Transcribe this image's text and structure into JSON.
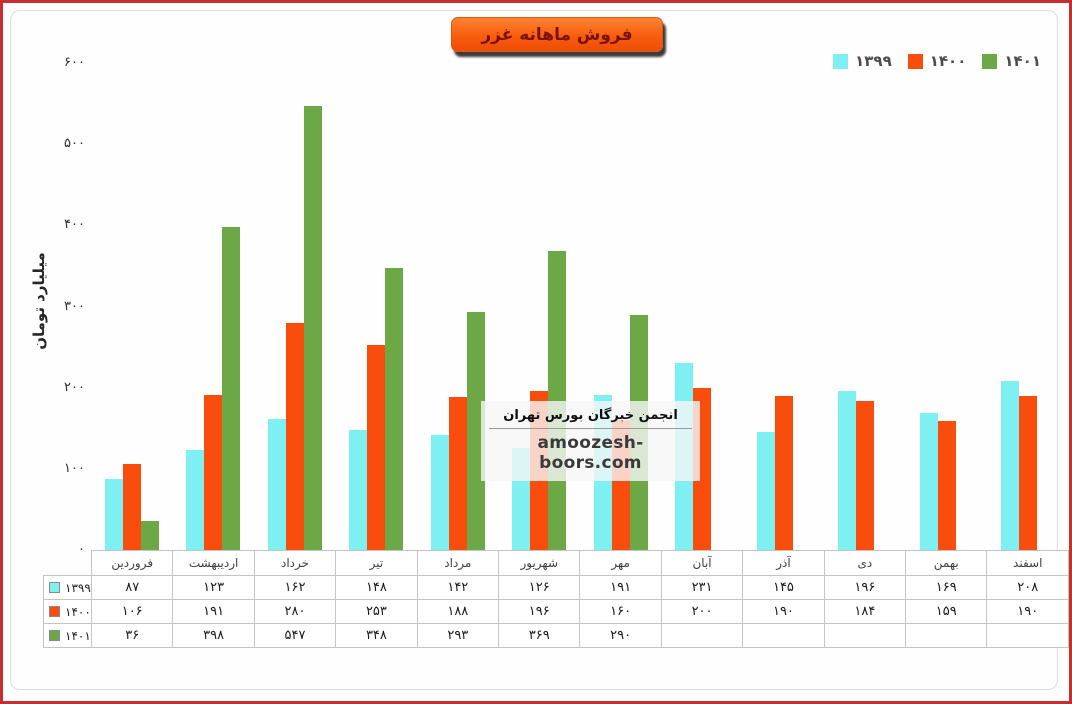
{
  "colors": {
    "frame_border": "#c62f2f",
    "badge_bg": "#f85d0f",
    "badge_text": "#7a1205",
    "series_1399": "#7ef0f1",
    "series_1400": "#f84d0c",
    "series_1401": "#6ca845"
  },
  "watermark": {
    "line1": "انجمن خبرگان بورس تهران",
    "line2": "amoozesh-boors.com"
  },
  "chart_data": {
    "type": "bar",
    "title": "فروش ماهانه غزر",
    "xlabel": "",
    "ylabel": "میلیارد تومان",
    "ylim": [
      0,
      600
    ],
    "yticks": [
      0,
      100,
      200,
      300,
      400,
      500,
      600
    ],
    "grid": false,
    "legend_position": "top-right",
    "categories": [
      "فروردین",
      "اردیبهشت",
      "خرداد",
      "تیر",
      "مرداد",
      "شهریور",
      "مهر",
      "آبان",
      "آذر",
      "دی",
      "بهمن",
      "اسفند"
    ],
    "series": [
      {
        "name": "۱۳۹۹",
        "color": "#7ef0f1",
        "values": [
          87,
          123,
          162,
          148,
          142,
          126,
          191,
          231,
          145,
          196,
          169,
          208
        ]
      },
      {
        "name": "۱۴۰۰",
        "color": "#f84d0c",
        "values": [
          106,
          191,
          280,
          253,
          188,
          196,
          160,
          200,
          190,
          184,
          159,
          190
        ]
      },
      {
        "name": "۱۴۰۱",
        "color": "#6ca845",
        "values": [
          36,
          398,
          547,
          348,
          293,
          369,
          290,
          null,
          null,
          null,
          null,
          null
        ]
      }
    ]
  }
}
